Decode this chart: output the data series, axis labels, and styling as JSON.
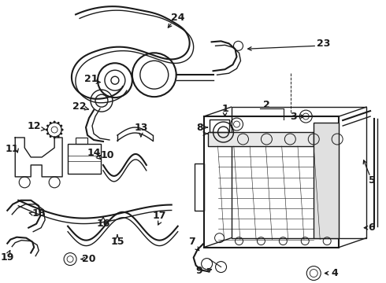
{
  "bg_color": "#ffffff",
  "line_color": "#1a1a1a",
  "figsize": [
    4.9,
    3.6
  ],
  "dpi": 100
}
